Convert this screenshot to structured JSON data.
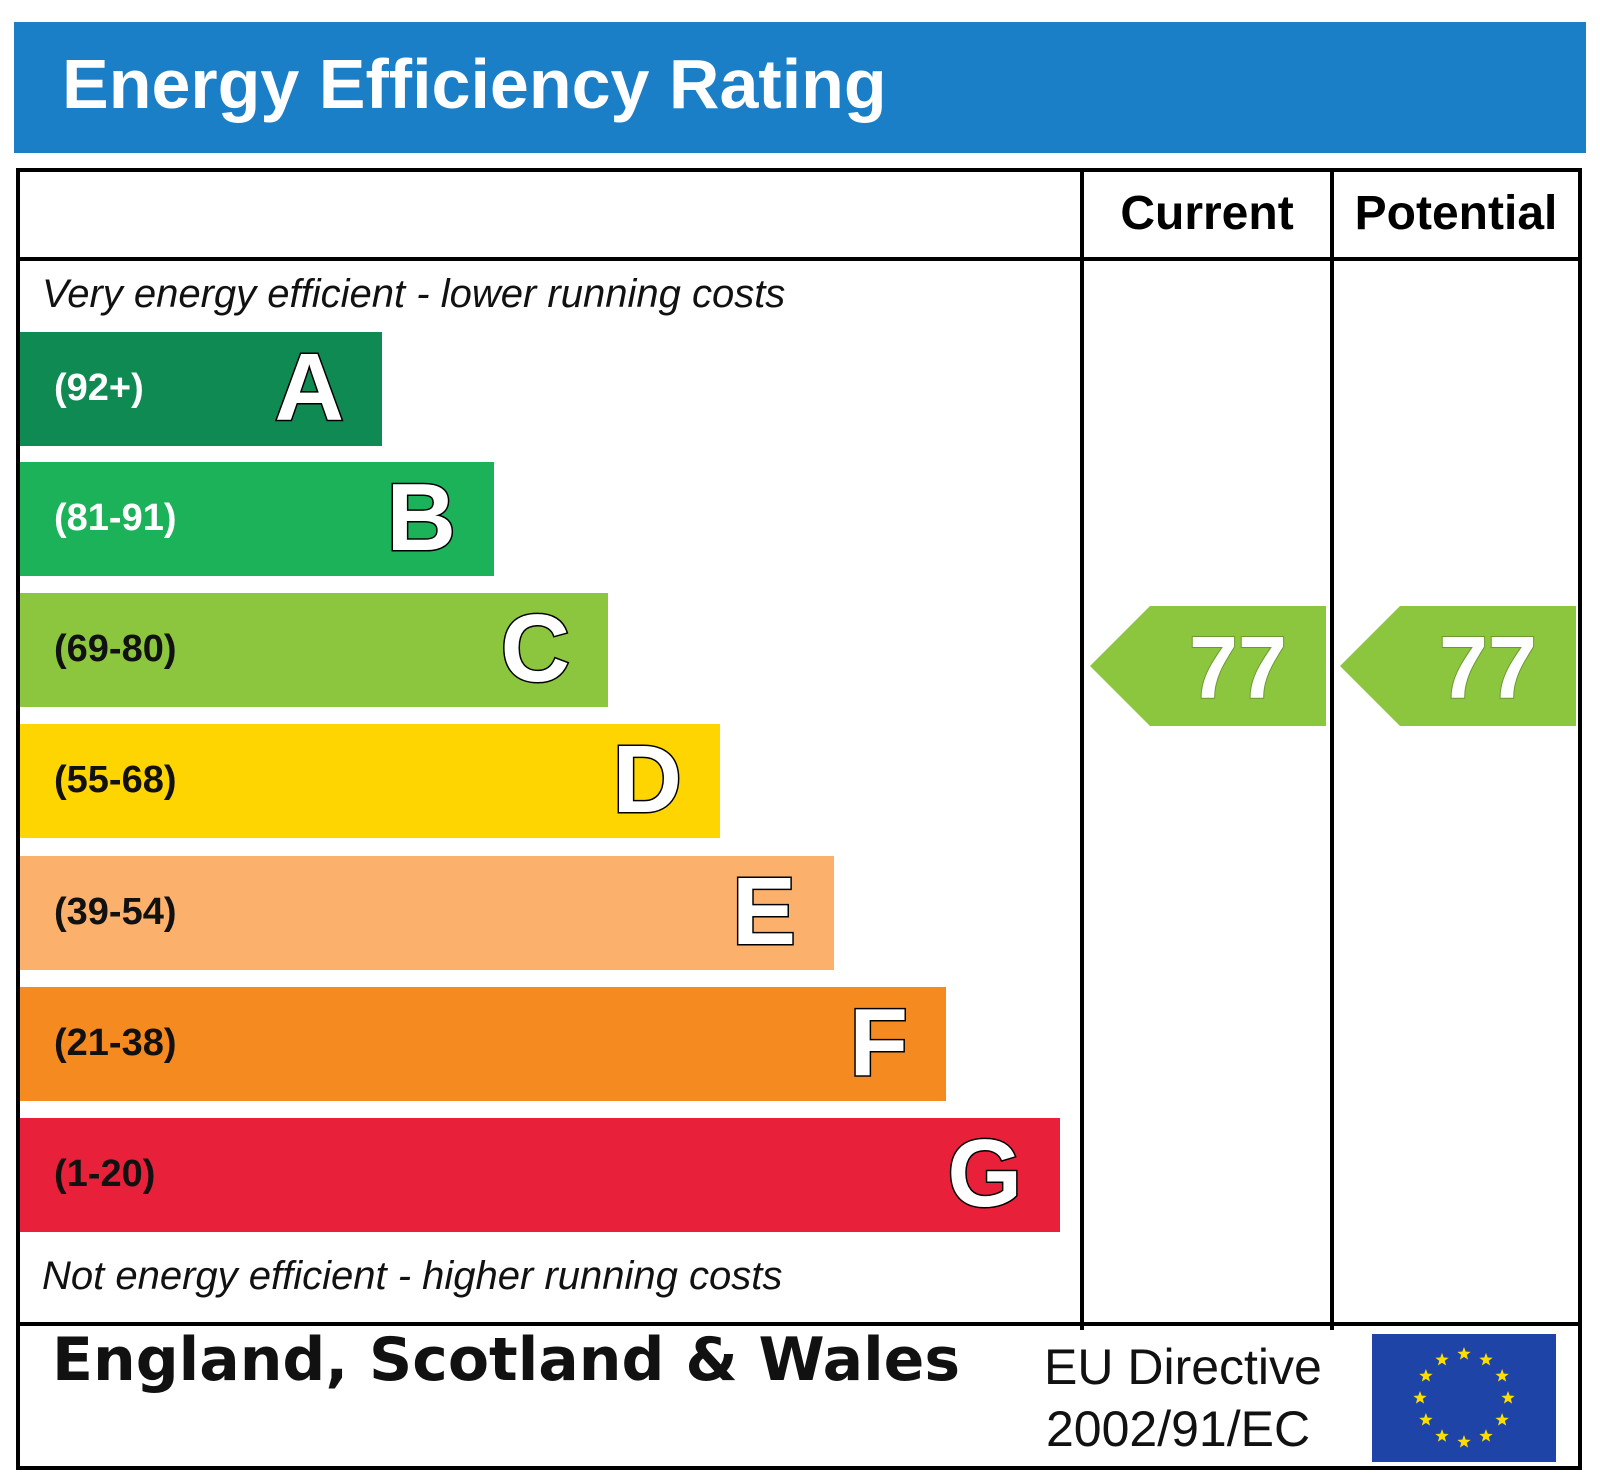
{
  "title": "Energy Efficiency Rating",
  "columns": {
    "current": "Current",
    "potential": "Potential"
  },
  "top_caption": "Very energy efficient - lower running costs",
  "bottom_caption": "Not energy efficient - higher running costs",
  "chart_data": {
    "type": "bar",
    "categories": [
      "A",
      "B",
      "C",
      "D",
      "E",
      "F",
      "G"
    ],
    "ranges": [
      "(92+)",
      "(81-91)",
      "(69-80)",
      "(55-68)",
      "(39-54)",
      "(21-38)",
      "(1-20)"
    ],
    "colors": [
      "#0f8a52",
      "#1cb25a",
      "#8cc63f",
      "#ffd500",
      "#fbb06b",
      "#f48a20",
      "#e8203a"
    ],
    "range_text_colors": [
      "#ffffff",
      "#ffffff",
      "#111111",
      "#111111",
      "#111111",
      "#111111",
      "#111111"
    ],
    "current": {
      "value": 77,
      "band": "C"
    },
    "potential": {
      "value": 77,
      "band": "C"
    },
    "arrow_color": "#8cc63f"
  },
  "footer": {
    "country": "England, Scotland & Wales",
    "directive_line1": "EU Directive",
    "directive_line2": "2002/91/EC",
    "flag_icon": "eu-flag-icon"
  }
}
